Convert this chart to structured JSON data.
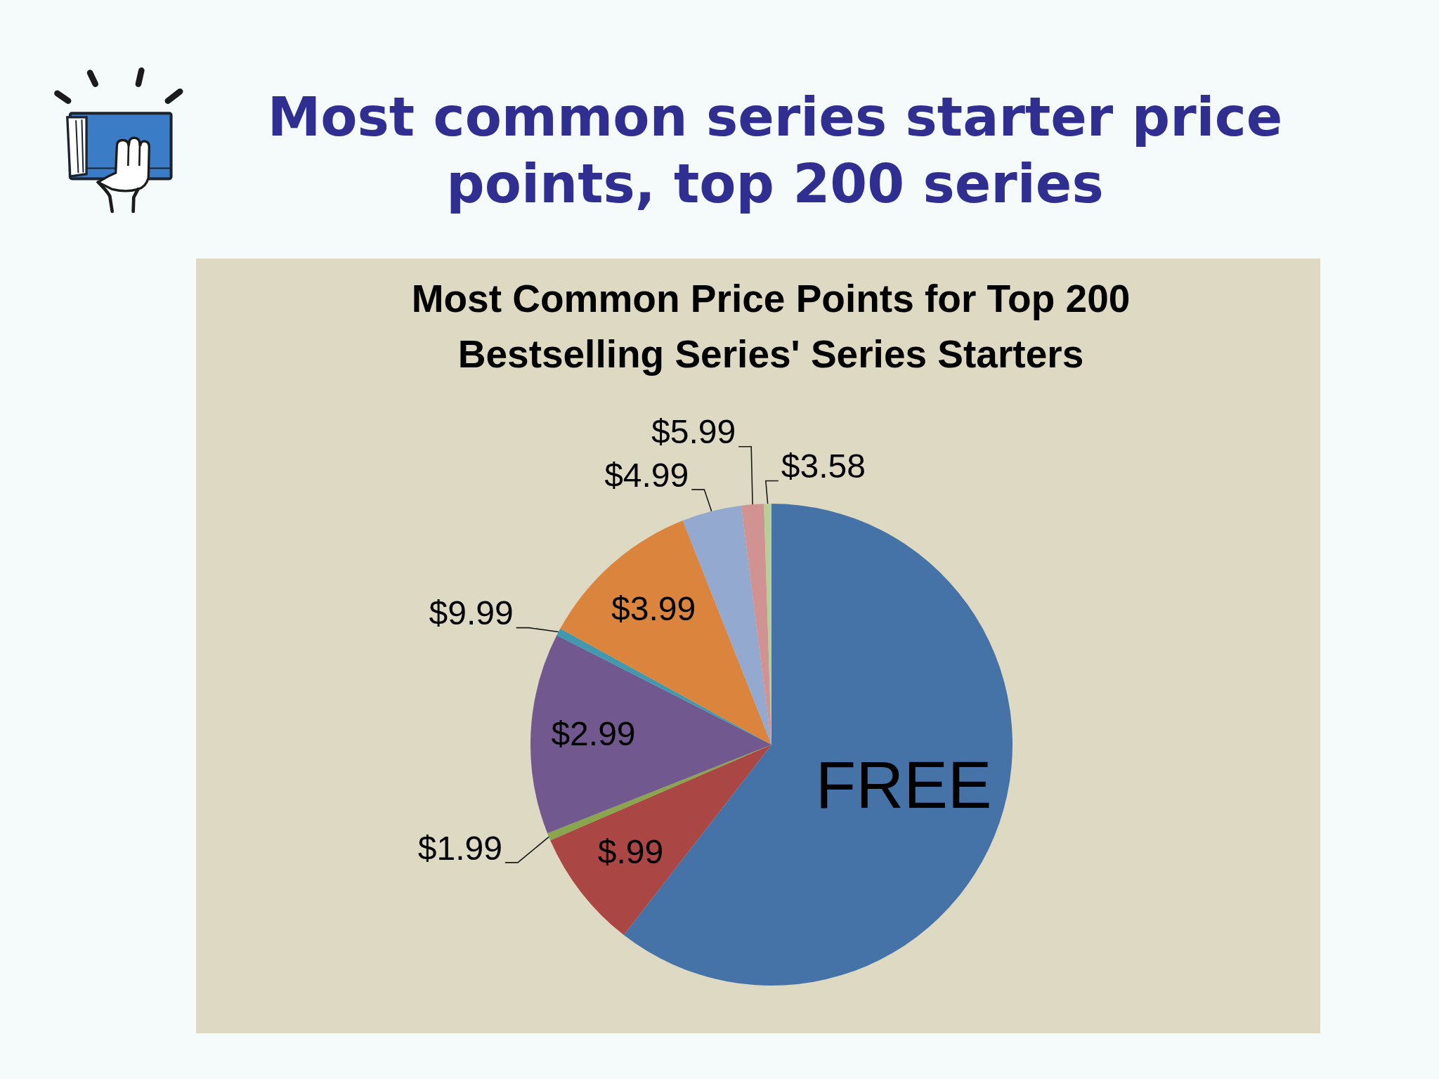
{
  "chart_data": {
    "type": "pie",
    "title": "Most common series starter price points, top 200 series",
    "subtitle": "Most Common Price Points for Top 200 Bestselling Series' Series Starters",
    "categories": [
      "FREE",
      "$.99",
      "$1.99",
      "$2.99",
      "$9.99",
      "$3.99",
      "$4.99",
      "$5.99",
      "$3.58"
    ],
    "values": [
      60.5,
      8,
      0.5,
      13.5,
      0.5,
      11,
      4,
      1.5,
      0.5
    ],
    "colors": [
      "#4572a7",
      "#aa4643",
      "#89a54e",
      "#71588f",
      "#4198af",
      "#db843d",
      "#93a9cf",
      "#d19392",
      "#b9cd96"
    ]
  }
}
